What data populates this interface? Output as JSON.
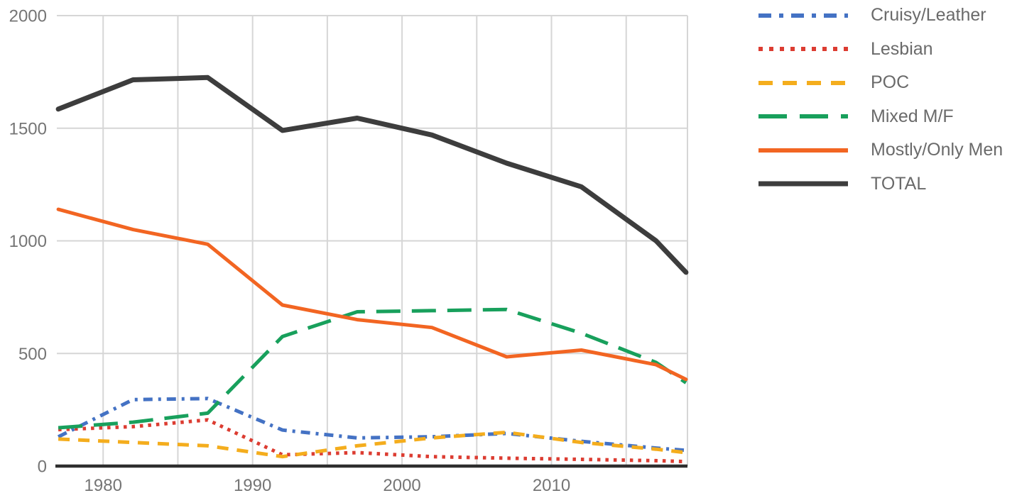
{
  "chart_data": {
    "type": "line",
    "title": "",
    "xlabel": "",
    "ylabel": "",
    "x": [
      1977,
      1982,
      1987,
      1992,
      1997,
      2002,
      2007,
      2012,
      2017,
      2019
    ],
    "series": [
      {
        "name": "Cruisy/Leather",
        "color": "#4472c4",
        "dash": "dashdot",
        "thick": false,
        "values": [
          130,
          295,
          300,
          160,
          125,
          130,
          145,
          110,
          80,
          70
        ]
      },
      {
        "name": "Lesbian",
        "color": "#dc3c31",
        "dash": "dotted",
        "thick": false,
        "values": [
          162,
          175,
          205,
          50,
          60,
          42,
          35,
          30,
          24,
          20
        ]
      },
      {
        "name": "POC",
        "color": "#f4ad1d",
        "dash": "dashed",
        "thick": false,
        "values": [
          120,
          105,
          90,
          42,
          90,
          125,
          150,
          105,
          75,
          60
        ]
      },
      {
        "name": "Mixed M/F",
        "color": "#18a05c",
        "dash": "longdash",
        "thick": false,
        "values": [
          170,
          195,
          235,
          575,
          685,
          690,
          695,
          590,
          460,
          370
        ]
      },
      {
        "name": "Mostly/Only Men",
        "color": "#f26522",
        "dash": "solid",
        "thick": false,
        "values": [
          1140,
          1050,
          985,
          715,
          650,
          615,
          485,
          515,
          450,
          385
        ]
      },
      {
        "name": "TOTAL",
        "color": "#3d3d3d",
        "dash": "solid",
        "thick": true,
        "values": [
          1585,
          1715,
          1725,
          1490,
          1545,
          1470,
          1345,
          1240,
          1000,
          860
        ]
      }
    ],
    "xticks": [
      1980,
      1990,
      2000,
      2010
    ],
    "xgrid_years": [
      1980,
      1985,
      1990,
      1995,
      2000,
      2005,
      2010,
      2015
    ],
    "yticks": [
      0,
      500,
      1000,
      1500,
      2000
    ],
    "ylim": [
      0,
      2000
    ],
    "xlim": [
      1976.9,
      2019.1
    ],
    "grid": true,
    "legend_position": "right"
  },
  "colors": {
    "background": "#ffffff",
    "grid": "#d6d6d6",
    "axis": "#2e2e2e",
    "tick_label": "#757575",
    "legend_label": "#6a6a6a"
  }
}
